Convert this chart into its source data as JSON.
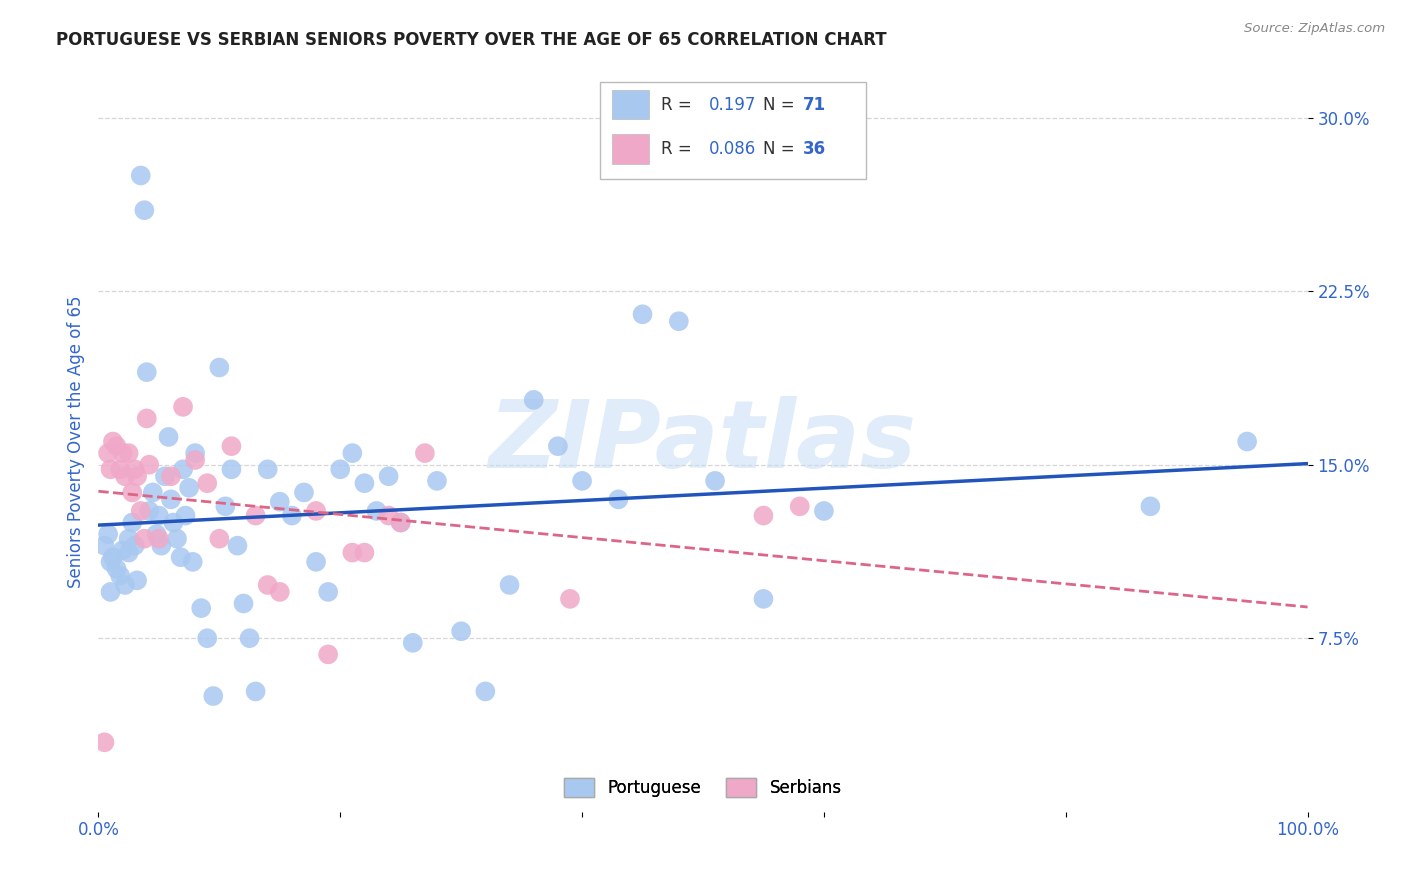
{
  "title": "PORTUGUESE VS SERBIAN SENIORS POVERTY OVER THE AGE OF 65 CORRELATION CHART",
  "source": "Source: ZipAtlas.com",
  "ylabel": "Seniors Poverty Over the Age of 65",
  "xlim": [
    0,
    1.0
  ],
  "ylim": [
    0,
    0.32
  ],
  "xticks": [
    0.0,
    0.2,
    0.4,
    0.6,
    0.8,
    1.0
  ],
  "xticklabels": [
    "0.0%",
    "",
    "",
    "",
    "",
    "100.0%"
  ],
  "yticks": [
    0.075,
    0.15,
    0.225,
    0.3
  ],
  "yticklabels": [
    "7.5%",
    "15.0%",
    "22.5%",
    "30.0%"
  ],
  "portuguese_R": 0.197,
  "portuguese_N": 71,
  "serbian_R": 0.086,
  "serbian_N": 36,
  "portuguese_color": "#a8c8f0",
  "serbian_color": "#f0a8c8",
  "portuguese_line_color": "#2255bb",
  "serbian_line_color": "#dd6688",
  "blue_text_color": "#3366cc",
  "portuguese_x": [
    0.005,
    0.008,
    0.01,
    0.01,
    0.012,
    0.015,
    0.018,
    0.02,
    0.022,
    0.025,
    0.025,
    0.028,
    0.03,
    0.032,
    0.035,
    0.038,
    0.04,
    0.042,
    0.045,
    0.048,
    0.05,
    0.052,
    0.055,
    0.058,
    0.06,
    0.062,
    0.065,
    0.068,
    0.07,
    0.072,
    0.075,
    0.078,
    0.08,
    0.085,
    0.09,
    0.095,
    0.1,
    0.105,
    0.11,
    0.115,
    0.12,
    0.125,
    0.13,
    0.14,
    0.15,
    0.16,
    0.17,
    0.18,
    0.19,
    0.2,
    0.21,
    0.22,
    0.23,
    0.24,
    0.25,
    0.26,
    0.28,
    0.3,
    0.32,
    0.34,
    0.36,
    0.38,
    0.4,
    0.43,
    0.45,
    0.48,
    0.51,
    0.55,
    0.6,
    0.87,
    0.95
  ],
  "portuguese_y": [
    0.115,
    0.12,
    0.108,
    0.095,
    0.11,
    0.105,
    0.102,
    0.113,
    0.098,
    0.118,
    0.112,
    0.125,
    0.115,
    0.1,
    0.275,
    0.26,
    0.19,
    0.13,
    0.138,
    0.12,
    0.128,
    0.115,
    0.145,
    0.162,
    0.135,
    0.125,
    0.118,
    0.11,
    0.148,
    0.128,
    0.14,
    0.108,
    0.155,
    0.088,
    0.075,
    0.05,
    0.192,
    0.132,
    0.148,
    0.115,
    0.09,
    0.075,
    0.052,
    0.148,
    0.134,
    0.128,
    0.138,
    0.108,
    0.095,
    0.148,
    0.155,
    0.142,
    0.13,
    0.145,
    0.125,
    0.073,
    0.143,
    0.078,
    0.052,
    0.098,
    0.178,
    0.158,
    0.143,
    0.135,
    0.215,
    0.212,
    0.143,
    0.092,
    0.13,
    0.132,
    0.16
  ],
  "serbian_x": [
    0.005,
    0.008,
    0.01,
    0.012,
    0.015,
    0.018,
    0.02,
    0.022,
    0.025,
    0.028,
    0.03,
    0.032,
    0.035,
    0.038,
    0.04,
    0.042,
    0.05,
    0.06,
    0.07,
    0.08,
    0.09,
    0.1,
    0.11,
    0.13,
    0.14,
    0.15,
    0.18,
    0.19,
    0.21,
    0.22,
    0.24,
    0.25,
    0.27,
    0.39,
    0.55,
    0.58
  ],
  "serbian_y": [
    0.03,
    0.155,
    0.148,
    0.16,
    0.158,
    0.148,
    0.155,
    0.145,
    0.155,
    0.138,
    0.148,
    0.145,
    0.13,
    0.118,
    0.17,
    0.15,
    0.118,
    0.145,
    0.175,
    0.152,
    0.142,
    0.118,
    0.158,
    0.128,
    0.098,
    0.095,
    0.13,
    0.068,
    0.112,
    0.112,
    0.128,
    0.125,
    0.155,
    0.092,
    0.128,
    0.132
  ],
  "watermark": "ZIPatlas",
  "background_color": "#ffffff",
  "grid_color": "#cccccc",
  "title_color": "#222222",
  "axis_label_color": "#3366cc",
  "tick_color": "#3366cc"
}
